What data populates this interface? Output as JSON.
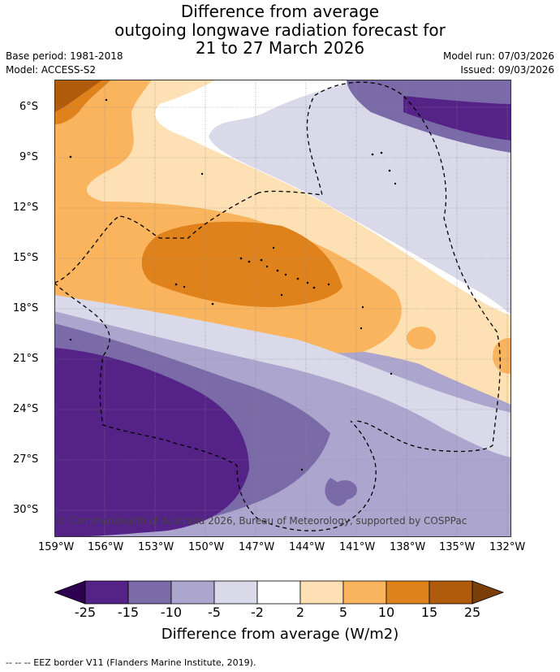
{
  "title": {
    "line1": "Difference from average",
    "line2": "outgoing longwave radiation forecast for",
    "line3": "21 to 27 March 2026"
  },
  "meta": {
    "base_period": "Base period: 1981-2018",
    "model": "Model: ACCESS-S2",
    "model_run": "Model run: 07/03/2026",
    "issued": "Issued: 09/03/2026"
  },
  "lat_labels": [
    "6°S",
    "9°S",
    "12°S",
    "15°S",
    "18°S",
    "21°S",
    "24°S",
    "27°S",
    "30°S"
  ],
  "lon_labels": [
    "159°W",
    "156°W",
    "153°W",
    "150°W",
    "147°W",
    "144°W",
    "141°W",
    "138°W",
    "135°W",
    "132°W"
  ],
  "copyright": "© Commonwealth of Australia 2026, Bureau of Meteorology, supported by COSPPac",
  "colorbar": {
    "title": "Difference from average (W/m2)",
    "labels": [
      "-25",
      "-15",
      "-10",
      "-5",
      "-2",
      "2",
      "5",
      "10",
      "15",
      "25"
    ],
    "colors": [
      "#2d0050",
      "#552288",
      "#7b6aa8",
      "#aca6ce",
      "#d9d9ea",
      "#ffffff",
      "#fde0b3",
      "#f9b45d",
      "#e0821c",
      "#b05a0c",
      "#7a3f08"
    ]
  },
  "footer": "-- -- -- EEZ border V11 (Flanders Marine Institute, 2019)."
}
